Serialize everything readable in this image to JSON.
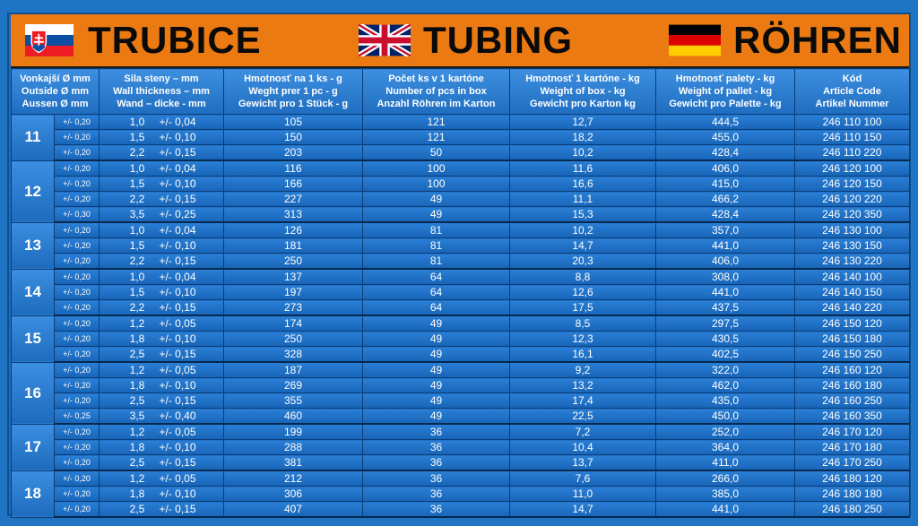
{
  "banner": {
    "sk": "TRUBICE",
    "en": "TUBING",
    "de": "RÖHREN",
    "flags": {
      "sk": [
        "#ffffff",
        "#0b4ea2",
        "#ee1c25"
      ],
      "uk": [
        "#012169",
        "#ffffff",
        "#c8102e"
      ],
      "de": [
        "#000000",
        "#dd0000",
        "#ffce00"
      ]
    }
  },
  "headers": [
    [
      "Vonkajší Ø mm",
      "Outside Ø mm",
      "Aussen Ø mm"
    ],
    [
      "Sila steny – mm",
      "Wall thickness – mm",
      "Wand – dicke - mm"
    ],
    [
      "Hmotnosť na 1 ks - g",
      "Weght prer 1 pc - g",
      "Gewicht pro 1 Stück - g"
    ],
    [
      "Počet ks v 1 kartóne",
      "Number of pcs in box",
      "Anzahl Röhren im Karton"
    ],
    [
      "Hmotnosť  1 kartóne - kg",
      "Weight of box - kg",
      "Gewicht pro Karton kg"
    ],
    [
      "Hmotnosť palety - kg",
      "Weight of pallet - kg",
      "Gewicht pro Palette - kg"
    ],
    [
      "Kód",
      "Article Code",
      "Artikel Nummer"
    ]
  ],
  "groups": [
    {
      "diameter": "11",
      "rows": [
        {
          "tol": "+/- 0,20",
          "wall": "1,0",
          "wall_tol": "+/- 0,04",
          "weight": "105",
          "pcs": "121",
          "box": "12,7",
          "pallet": "444,5",
          "code": "246 110 100"
        },
        {
          "tol": "+/- 0,20",
          "wall": "1,5",
          "wall_tol": "+/- 0,10",
          "weight": "150",
          "pcs": "121",
          "box": "18,2",
          "pallet": "455,0",
          "code": "246 110 150"
        },
        {
          "tol": "+/- 0,20",
          "wall": "2,2",
          "wall_tol": "+/- 0,15",
          "weight": "203",
          "pcs": "50",
          "box": "10,2",
          "pallet": "428,4",
          "code": "246 110 220"
        }
      ]
    },
    {
      "diameter": "12",
      "rows": [
        {
          "tol": "+/- 0,20",
          "wall": "1,0",
          "wall_tol": "+/- 0,04",
          "weight": "116",
          "pcs": "100",
          "box": "11,6",
          "pallet": "406,0",
          "code": "246 120 100"
        },
        {
          "tol": "+/- 0,20",
          "wall": "1,5",
          "wall_tol": "+/- 0,10",
          "weight": "166",
          "pcs": "100",
          "box": "16,6",
          "pallet": "415,0",
          "code": "246 120 150"
        },
        {
          "tol": "+/- 0,20",
          "wall": "2,2",
          "wall_tol": "+/- 0,15",
          "weight": "227",
          "pcs": "49",
          "box": "11,1",
          "pallet": "466,2",
          "code": "246 120 220"
        },
        {
          "tol": "+/- 0,30",
          "wall": "3,5",
          "wall_tol": "+/- 0,25",
          "weight": "313",
          "pcs": "49",
          "box": "15,3",
          "pallet": "428,4",
          "code": "246 120 350"
        }
      ]
    },
    {
      "diameter": "13",
      "rows": [
        {
          "tol": "+/- 0,20",
          "wall": "1,0",
          "wall_tol": "+/- 0,04",
          "weight": "126",
          "pcs": "81",
          "box": "10,2",
          "pallet": "357,0",
          "code": "246 130 100"
        },
        {
          "tol": "+/- 0,20",
          "wall": "1,5",
          "wall_tol": "+/- 0,10",
          "weight": "181",
          "pcs": "81",
          "box": "14,7",
          "pallet": "441,0",
          "code": "246 130 150"
        },
        {
          "tol": "+/- 0,20",
          "wall": "2,2",
          "wall_tol": "+/- 0,15",
          "weight": "250",
          "pcs": "81",
          "box": "20,3",
          "pallet": "406,0",
          "code": "246 130 220"
        }
      ]
    },
    {
      "diameter": "14",
      "rows": [
        {
          "tol": "+/- 0,20",
          "wall": "1,0",
          "wall_tol": "+/- 0,04",
          "weight": "137",
          "pcs": "64",
          "box": "8,8",
          "pallet": "308,0",
          "code": "246 140 100"
        },
        {
          "tol": "+/- 0,20",
          "wall": "1,5",
          "wall_tol": "+/- 0,10",
          "weight": "197",
          "pcs": "64",
          "box": "12,6",
          "pallet": "441,0",
          "code": "246 140 150"
        },
        {
          "tol": "+/- 0,20",
          "wall": "2,2",
          "wall_tol": "+/- 0,15",
          "weight": "273",
          "pcs": "64",
          "box": "17,5",
          "pallet": "437,5",
          "code": "246 140 220"
        }
      ]
    },
    {
      "diameter": "15",
      "rows": [
        {
          "tol": "+/- 0,20",
          "wall": "1,2",
          "wall_tol": "+/- 0,05",
          "weight": "174",
          "pcs": "49",
          "box": "8,5",
          "pallet": "297,5",
          "code": "246 150 120"
        },
        {
          "tol": "+/- 0,20",
          "wall": "1,8",
          "wall_tol": "+/- 0,10",
          "weight": "250",
          "pcs": "49",
          "box": "12,3",
          "pallet": "430,5",
          "code": "246 150 180"
        },
        {
          "tol": "+/- 0,20",
          "wall": "2,5",
          "wall_tol": "+/- 0,15",
          "weight": "328",
          "pcs": "49",
          "box": "16,1",
          "pallet": "402,5",
          "code": "246 150 250"
        }
      ]
    },
    {
      "diameter": "16",
      "rows": [
        {
          "tol": "+/- 0,20",
          "wall": "1,2",
          "wall_tol": "+/- 0,05",
          "weight": "187",
          "pcs": "49",
          "box": "9,2",
          "pallet": "322,0",
          "code": "246 160 120"
        },
        {
          "tol": "+/- 0,20",
          "wall": "1,8",
          "wall_tol": "+/- 0,10",
          "weight": "269",
          "pcs": "49",
          "box": "13,2",
          "pallet": "462,0",
          "code": "246 160 180"
        },
        {
          "tol": "+/- 0,20",
          "wall": "2,5",
          "wall_tol": "+/- 0,15",
          "weight": "355",
          "pcs": "49",
          "box": "17,4",
          "pallet": "435,0",
          "code": "246 160 250"
        },
        {
          "tol": "+/- 0,25",
          "wall": "3,5",
          "wall_tol": "+/- 0,40",
          "weight": "460",
          "pcs": "49",
          "box": "22,5",
          "pallet": "450,0",
          "code": "246 160 350"
        }
      ]
    },
    {
      "diameter": "17",
      "rows": [
        {
          "tol": "+/- 0,20",
          "wall": "1,2",
          "wall_tol": "+/- 0,05",
          "weight": "199",
          "pcs": "36",
          "box": "7,2",
          "pallet": "252,0",
          "code": "246 170 120"
        },
        {
          "tol": "+/- 0,20",
          "wall": "1,8",
          "wall_tol": "+/- 0,10",
          "weight": "288",
          "pcs": "36",
          "box": "10,4",
          "pallet": "364,0",
          "code": "246 170 180"
        },
        {
          "tol": "+/- 0,20",
          "wall": "2,5",
          "wall_tol": "+/- 0,15",
          "weight": "381",
          "pcs": "36",
          "box": "13,7",
          "pallet": "411,0",
          "code": "246 170 250"
        }
      ]
    },
    {
      "diameter": "18",
      "rows": [
        {
          "tol": "+/- 0,20",
          "wall": "1,2",
          "wall_tol": "+/- 0,05",
          "weight": "212",
          "pcs": "36",
          "box": "7,6",
          "pallet": "266,0",
          "code": "246 180 120"
        },
        {
          "tol": "+/- 0,20",
          "wall": "1,8",
          "wall_tol": "+/- 0,10",
          "weight": "306",
          "pcs": "36",
          "box": "11,0",
          "pallet": "385,0",
          "code": "246 180 180"
        },
        {
          "tol": "+/- 0,20",
          "wall": "2,5",
          "wall_tol": "+/- 0,15",
          "weight": "407",
          "pcs": "36",
          "box": "14,7",
          "pallet": "441,0",
          "code": "246 180 250"
        }
      ]
    }
  ]
}
